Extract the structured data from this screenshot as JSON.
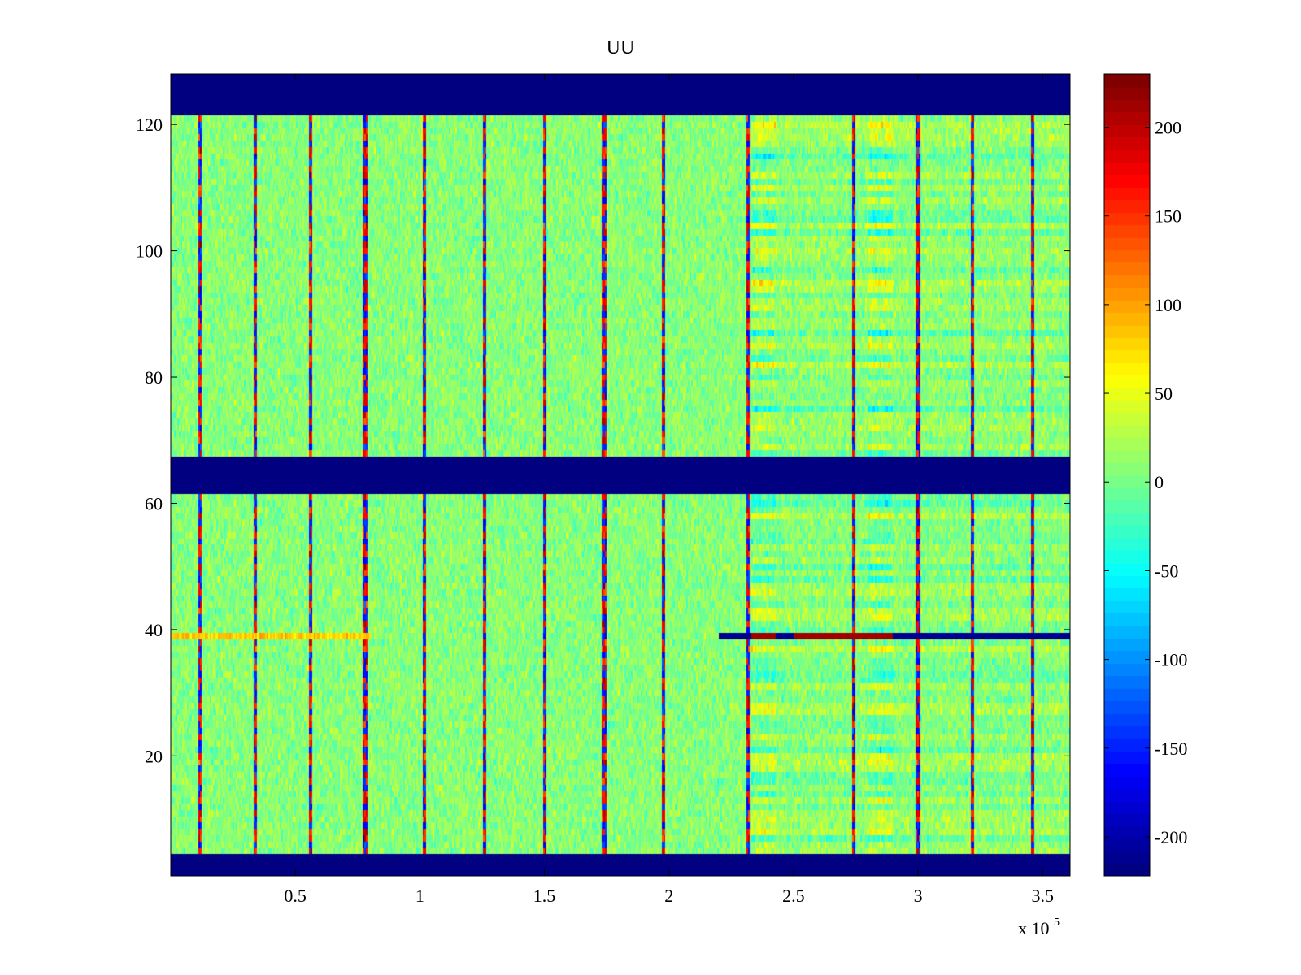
{
  "chart_data": {
    "type": "heatmap",
    "title": "UU",
    "x_exponent_label": "x 10",
    "x_exponent_power": "5",
    "xlim": [
      0,
      3.61
    ],
    "ylim": [
      1,
      128
    ],
    "x_ticks": [
      "0.5",
      "1",
      "1.5",
      "2",
      "2.5",
      "3",
      "3.5"
    ],
    "x_tick_values": [
      0.5,
      1,
      1.5,
      2,
      2.5,
      3,
      3.5
    ],
    "y_ticks": [
      "20",
      "40",
      "60",
      "80",
      "100",
      "120"
    ],
    "y_tick_values": [
      20,
      40,
      60,
      80,
      100,
      120
    ],
    "colorbar": {
      "colormap": "jet",
      "range": [
        -222,
        230
      ],
      "ticks": [
        "200",
        "150",
        "100",
        "50",
        "0",
        "-50",
        "-100",
        "-150",
        "-200"
      ],
      "tick_values": [
        200,
        150,
        100,
        50,
        0,
        -50,
        -100,
        -150,
        -200
      ]
    },
    "blank_row_bands": [
      [
        1,
        4
      ],
      [
        62,
        67
      ],
      [
        122,
        128
      ]
    ],
    "blank_value": -222,
    "vertical_spike_x": [
      0.12,
      0.34,
      0.56,
      0.78,
      1.02,
      1.26,
      1.5,
      1.74,
      1.98,
      2.32,
      2.74,
      3.0,
      3.22,
      3.46
    ],
    "active_block_x_ranges": [
      [
        2.33,
        2.43
      ],
      [
        2.8,
        2.9
      ]
    ],
    "strong_row": {
      "y": 39,
      "x_start": 2.2,
      "value": -210
    },
    "grid": false,
    "legend": "none"
  }
}
